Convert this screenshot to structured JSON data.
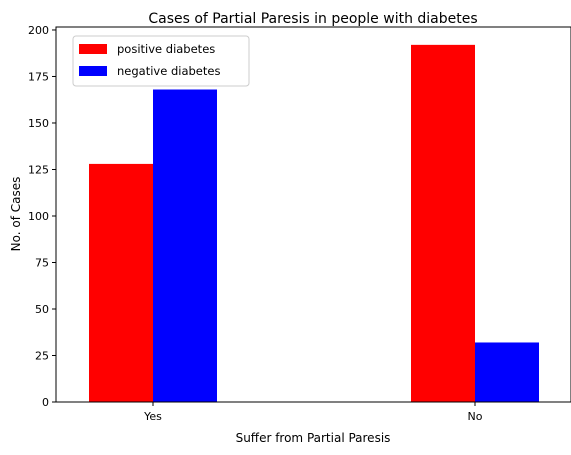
{
  "chart_data": {
    "type": "bar",
    "title": "Cases of Partial Paresis in people with diabetes",
    "xlabel": "Suffer from Partial Paresis",
    "ylabel": "No. of Cases",
    "categories": [
      "Yes",
      "No"
    ],
    "series": [
      {
        "name": "positive diabetes",
        "color": "#ff0000",
        "values": [
          128,
          192
        ]
      },
      {
        "name": "negative diabetes",
        "color": "#0000ff",
        "values": [
          168,
          32
        ]
      }
    ],
    "ylim": [
      0,
      201.6
    ],
    "yticks": [
      0,
      25,
      50,
      75,
      100,
      125,
      150,
      175,
      200
    ],
    "grid": false,
    "legend": "top-left"
  }
}
